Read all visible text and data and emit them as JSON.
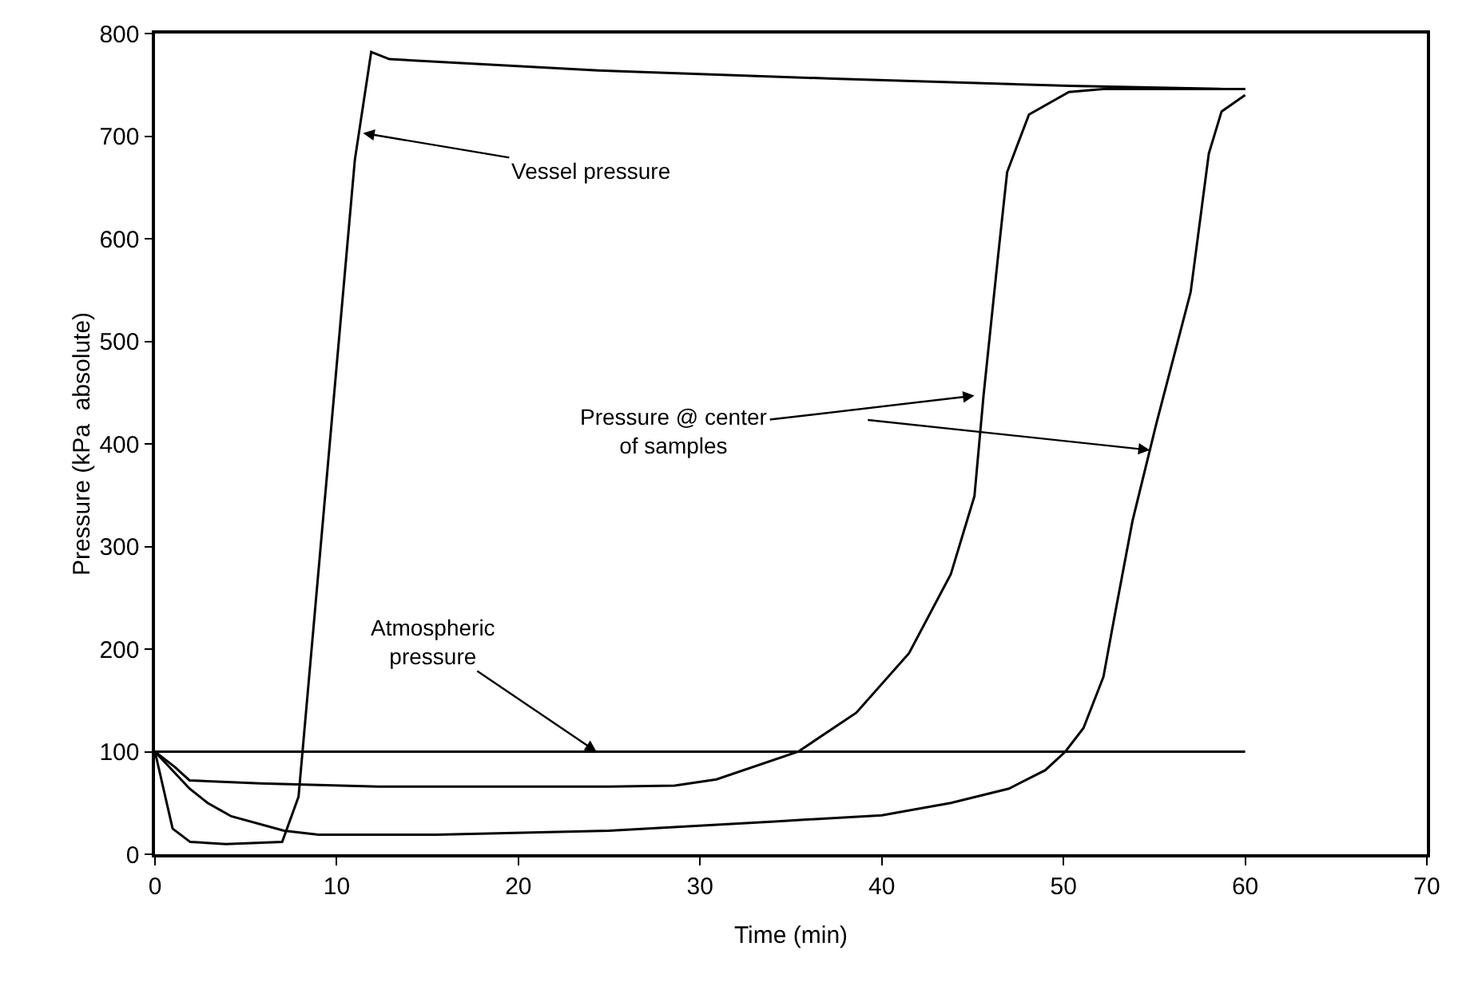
{
  "chart_data": {
    "type": "line",
    "xlabel": "Time (min)",
    "ylabel": "Pressure (kPa  absolute)",
    "xlim": [
      0,
      70
    ],
    "xticks": [
      0,
      10,
      20,
      30,
      40,
      50,
      60,
      70
    ],
    "ylim": [
      0,
      800
    ],
    "yticks": [
      0,
      100,
      200,
      300,
      400,
      500,
      600,
      700,
      800
    ],
    "marker": "none",
    "line_style": "solid",
    "series": [
      {
        "color": "#000000",
        "x": [
          0,
          0.97,
          1.94,
          3.9,
          7,
          7.9,
          11,
          11.9,
          12.9,
          24.4,
          37.3,
          50.3,
          58.8,
          60
        ],
        "values": [
          100,
          25,
          12,
          10,
          12,
          56,
          677,
          782,
          775,
          764,
          756,
          749,
          746,
          746
        ]
      },
      {
        "color": "#000000",
        "x": [
          0,
          1.1,
          1.9,
          5.8,
          12.3,
          25,
          28.6,
          30.9,
          35.4,
          38.6,
          41.5,
          43.8,
          45.1,
          45.6,
          46.4,
          46.9,
          48.1,
          50.3,
          52.2,
          60
        ],
        "values": [
          100,
          85,
          72,
          69,
          66,
          66,
          67,
          73,
          100,
          138,
          196,
          273,
          349,
          447,
          583,
          665,
          721,
          743,
          746,
          746
        ]
      },
      {
        "color": "#000000",
        "x": [
          0,
          1.9,
          2.9,
          4.2,
          7.1,
          9,
          15.5,
          25,
          34.1,
          40,
          43.8,
          47,
          49,
          50.1,
          51.1,
          52.2,
          52.8,
          53.8,
          55.1,
          57,
          58,
          58.7,
          60
        ],
        "values": [
          100,
          64,
          50,
          37,
          23,
          19,
          19,
          23,
          32,
          38,
          50,
          64,
          82,
          100,
          123,
          173,
          231,
          325,
          419,
          548,
          683,
          724,
          740
        ]
      }
    ],
    "ref_lines": [
      {
        "axis": "y",
        "value": 100,
        "color": "#000000"
      }
    ],
    "annotations": [
      {
        "text": "Vessel pressure",
        "x": 11.45,
        "y": 703
      },
      {
        "text": "Pressure @ center\nof samples",
        "x": 45.1,
        "y": 447
      },
      {
        "text": "Atmospheric\npressure",
        "x": 24.3,
        "y": 100
      }
    ]
  }
}
